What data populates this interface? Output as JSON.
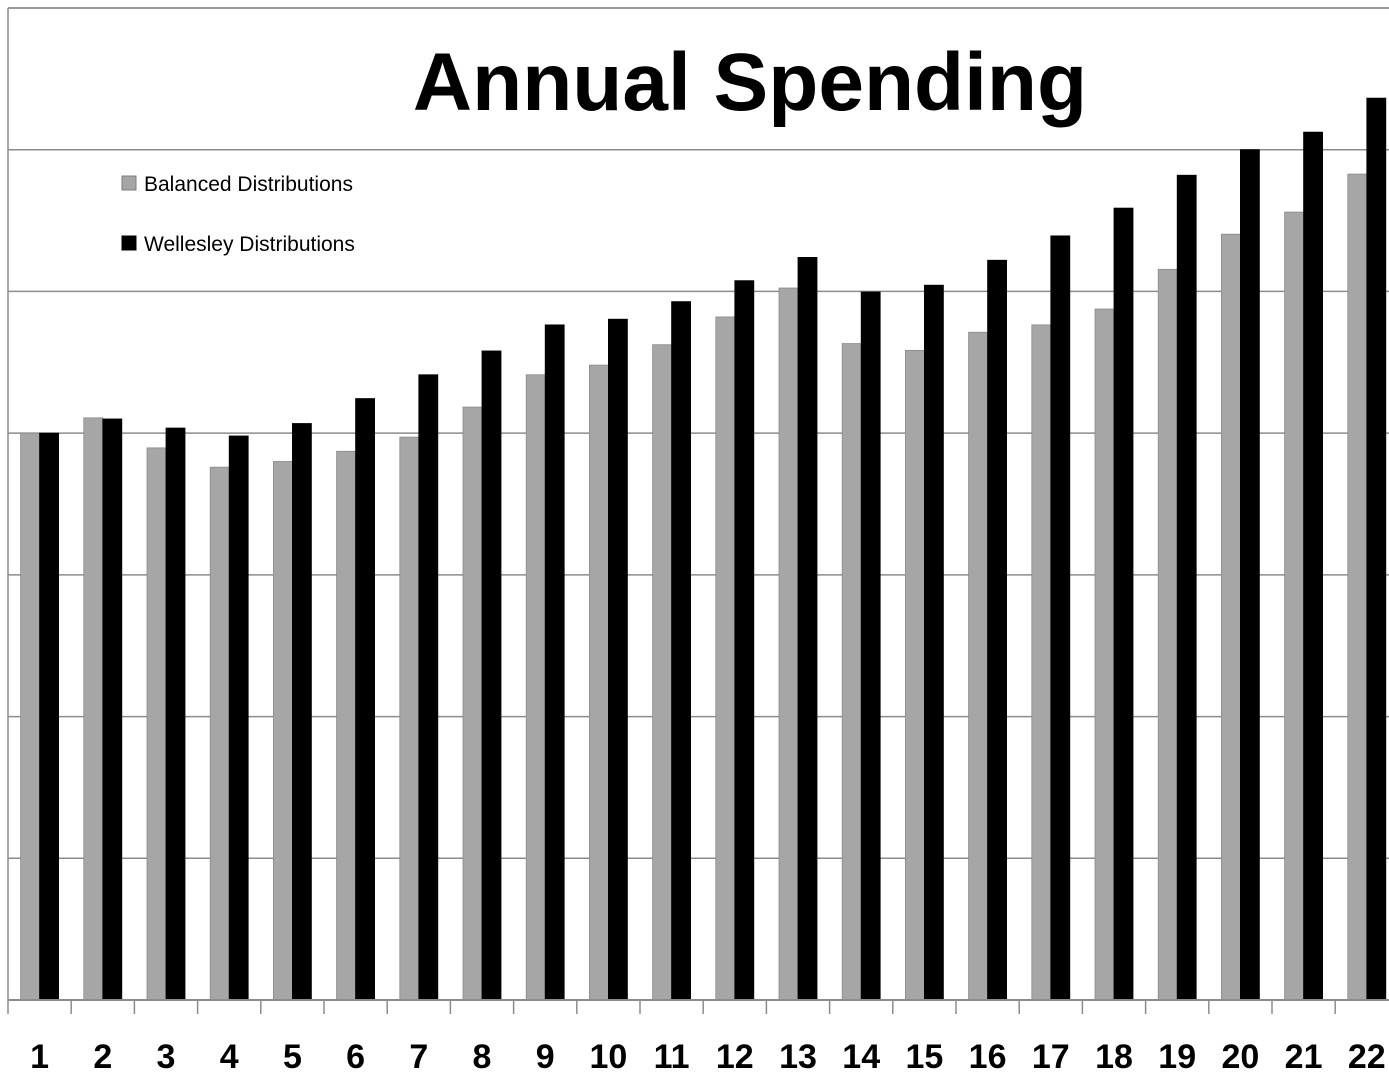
{
  "chart_data": {
    "type": "bar",
    "title": "Annual Spending",
    "xlabel": "",
    "ylabel": "",
    "categories": [
      "1",
      "2",
      "3",
      "4",
      "5",
      "6",
      "7",
      "8",
      "9",
      "10",
      "11",
      "12",
      "13",
      "14",
      "15",
      "16",
      "17",
      "18",
      "19",
      "20",
      "21",
      "22"
    ],
    "series": [
      {
        "name": "Balanced Distributions",
        "color": "#a6a6a6",
        "values": [
          100.0,
          102.7,
          97.4,
          94.0,
          95.0,
          96.8,
          99.3,
          104.6,
          110.3,
          112.0,
          115.6,
          120.5,
          125.6,
          115.8,
          114.6,
          117.8,
          119.1,
          121.9,
          128.9,
          135.1,
          139.0,
          145.7
        ]
      },
      {
        "name": "Wellesley Distributions",
        "color": "#000000",
        "values": [
          100.0,
          102.5,
          100.9,
          99.5,
          101.7,
          106.1,
          110.3,
          114.5,
          119.1,
          120.1,
          123.2,
          126.9,
          131.0,
          124.9,
          126.1,
          130.5,
          134.8,
          139.7,
          145.5,
          150.0,
          153.1,
          159.1
        ]
      }
    ],
    "ylim": [
      0,
      175
    ],
    "grid": true,
    "legend": "top-left"
  }
}
